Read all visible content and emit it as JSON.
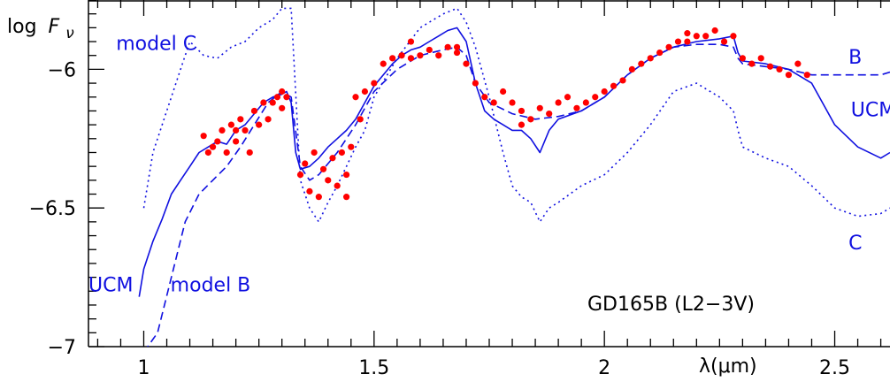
{
  "chart_data": {
    "type": "line",
    "title": "",
    "xlabel": "λ(μm)",
    "ylabel": "log F_ν",
    "ylabel_parts": {
      "prefix": "log",
      "symbol": "F",
      "subscript": "ν"
    },
    "xlim": [
      0.88,
      2.62
    ],
    "ylim": [
      -7.0,
      -5.75
    ],
    "x_ticks": [
      1,
      1.5,
      2,
      2.5
    ],
    "x_tick_labels": [
      "1",
      "1.5",
      "2",
      "2.5"
    ],
    "y_ticks": [
      -6,
      -6.5,
      -7
    ],
    "y_tick_labels": [
      "−6",
      "−6.5",
      "−7"
    ],
    "grid": false,
    "legend": "none",
    "object_label": "GD165B (L2−3V)",
    "colors": {
      "observed": "#ff0000",
      "model": "#1010e0",
      "axes": "#000000"
    },
    "series": [
      {
        "name": "UCM",
        "style": "solid",
        "x": [
          0.99,
          1.0,
          1.02,
          1.04,
          1.06,
          1.08,
          1.1,
          1.12,
          1.14,
          1.16,
          1.18,
          1.2,
          1.22,
          1.24,
          1.26,
          1.28,
          1.3,
          1.31,
          1.32,
          1.33,
          1.34,
          1.36,
          1.38,
          1.4,
          1.42,
          1.44,
          1.46,
          1.48,
          1.5,
          1.52,
          1.54,
          1.56,
          1.58,
          1.6,
          1.62,
          1.64,
          1.66,
          1.68,
          1.7,
          1.72,
          1.74,
          1.76,
          1.78,
          1.8,
          1.82,
          1.84,
          1.86,
          1.88,
          1.9,
          1.95,
          2.0,
          2.05,
          2.1,
          2.15,
          2.2,
          2.25,
          2.28,
          2.29,
          2.3,
          2.35,
          2.4,
          2.45,
          2.5,
          2.55,
          2.6,
          2.62
        ],
        "y": [
          -6.82,
          -6.72,
          -6.62,
          -6.54,
          -6.45,
          -6.4,
          -6.35,
          -6.3,
          -6.28,
          -6.26,
          -6.27,
          -6.22,
          -6.2,
          -6.16,
          -6.12,
          -6.1,
          -6.09,
          -6.08,
          -6.12,
          -6.3,
          -6.36,
          -6.35,
          -6.32,
          -6.28,
          -6.25,
          -6.22,
          -6.18,
          -6.12,
          -6.06,
          -6.02,
          -5.98,
          -5.95,
          -5.93,
          -5.92,
          -5.9,
          -5.88,
          -5.86,
          -5.85,
          -5.9,
          -6.05,
          -6.15,
          -6.18,
          -6.2,
          -6.22,
          -6.22,
          -6.25,
          -6.3,
          -6.22,
          -6.18,
          -6.15,
          -6.1,
          -6.02,
          -5.96,
          -5.92,
          -5.9,
          -5.89,
          -5.88,
          -5.94,
          -5.97,
          -5.98,
          -6.0,
          -6.05,
          -6.2,
          -6.28,
          -6.32,
          -6.3
        ]
      },
      {
        "name": "model B",
        "style": "dashed",
        "x": [
          1.0,
          1.03,
          1.06,
          1.09,
          1.12,
          1.15,
          1.18,
          1.21,
          1.24,
          1.27,
          1.3,
          1.32,
          1.34,
          1.36,
          1.38,
          1.4,
          1.42,
          1.44,
          1.46,
          1.5,
          1.55,
          1.6,
          1.65,
          1.68,
          1.7,
          1.72,
          1.75,
          1.8,
          1.85,
          1.9,
          1.95,
          2.0,
          2.05,
          2.1,
          2.15,
          2.2,
          2.25,
          2.28,
          2.29,
          2.3,
          2.35,
          2.4,
          2.45,
          2.5,
          2.55,
          2.6,
          2.62
        ],
        "y": [
          -7.02,
          -6.95,
          -6.75,
          -6.55,
          -6.45,
          -6.4,
          -6.35,
          -6.28,
          -6.2,
          -6.12,
          -6.08,
          -6.1,
          -6.35,
          -6.4,
          -6.38,
          -6.34,
          -6.3,
          -6.25,
          -6.2,
          -6.08,
          -6.0,
          -5.95,
          -5.93,
          -5.92,
          -5.95,
          -6.05,
          -6.12,
          -6.16,
          -6.18,
          -6.17,
          -6.15,
          -6.1,
          -6.02,
          -5.96,
          -5.92,
          -5.91,
          -5.91,
          -5.92,
          -5.96,
          -5.98,
          -5.99,
          -6.0,
          -6.02,
          -6.02,
          -6.02,
          -6.02,
          -6.01
        ]
      },
      {
        "name": "model C",
        "style": "dotted",
        "x": [
          1.0,
          1.02,
          1.05,
          1.08,
          1.1,
          1.13,
          1.16,
          1.19,
          1.22,
          1.25,
          1.28,
          1.3,
          1.32,
          1.34,
          1.36,
          1.38,
          1.4,
          1.42,
          1.44,
          1.46,
          1.48,
          1.5,
          1.55,
          1.6,
          1.65,
          1.68,
          1.7,
          1.72,
          1.75,
          1.78,
          1.8,
          1.82,
          1.84,
          1.86,
          1.88,
          1.9,
          1.95,
          2.0,
          2.05,
          2.1,
          2.15,
          2.2,
          2.25,
          2.28,
          2.29,
          2.3,
          2.35,
          2.4,
          2.45,
          2.5,
          2.55,
          2.6,
          2.62
        ],
        "y": [
          -6.5,
          -6.3,
          -6.15,
          -6.0,
          -5.9,
          -5.95,
          -5.96,
          -5.92,
          -5.9,
          -5.85,
          -5.82,
          -5.78,
          -5.78,
          -6.4,
          -6.5,
          -6.55,
          -6.48,
          -6.42,
          -6.35,
          -6.28,
          -6.22,
          -6.1,
          -5.96,
          -5.85,
          -5.8,
          -5.78,
          -5.83,
          -5.92,
          -6.1,
          -6.3,
          -6.42,
          -6.46,
          -6.48,
          -6.55,
          -6.5,
          -6.48,
          -6.42,
          -6.38,
          -6.3,
          -6.2,
          -6.08,
          -6.05,
          -6.1,
          -6.15,
          -6.22,
          -6.28,
          -6.32,
          -6.35,
          -6.42,
          -6.5,
          -6.53,
          -6.52,
          -6.5
        ]
      },
      {
        "name": "observed",
        "style": "markers",
        "x": [
          1.13,
          1.14,
          1.15,
          1.16,
          1.17,
          1.18,
          1.19,
          1.2,
          1.21,
          1.22,
          1.23,
          1.24,
          1.25,
          1.26,
          1.27,
          1.28,
          1.29,
          1.3,
          1.31,
          1.34,
          1.35,
          1.36,
          1.37,
          1.38,
          1.39,
          1.4,
          1.41,
          1.42,
          1.43,
          1.44,
          1.45,
          1.46,
          1.47,
          1.48,
          1.5,
          1.52,
          1.54,
          1.56,
          1.58,
          1.6,
          1.62,
          1.64,
          1.66,
          1.68,
          1.7,
          1.72,
          1.74,
          1.76,
          1.78,
          1.8,
          1.82,
          1.84,
          1.86,
          1.88,
          1.9,
          1.92,
          1.94,
          1.96,
          1.98,
          2.0,
          2.02,
          2.04,
          2.06,
          2.08,
          2.1,
          2.12,
          2.14,
          2.16,
          2.18,
          2.2,
          2.22,
          2.24,
          2.26,
          2.28,
          2.3,
          2.32,
          2.34,
          2.36,
          2.38,
          2.4,
          2.42,
          2.44,
          1.2,
          1.3,
          1.44,
          1.58,
          1.68,
          1.82,
          2.18
        ],
        "y": [
          -6.24,
          -6.3,
          -6.28,
          -6.26,
          -6.22,
          -6.3,
          -6.2,
          -6.26,
          -6.18,
          -6.22,
          -6.3,
          -6.15,
          -6.2,
          -6.12,
          -6.18,
          -6.12,
          -6.1,
          -6.08,
          -6.1,
          -6.38,
          -6.34,
          -6.44,
          -6.3,
          -6.46,
          -6.36,
          -6.4,
          -6.32,
          -6.42,
          -6.3,
          -6.38,
          -6.28,
          -6.1,
          -6.18,
          -6.08,
          -6.05,
          -5.98,
          -5.96,
          -5.95,
          -5.96,
          -5.95,
          -5.93,
          -5.95,
          -5.92,
          -5.94,
          -5.98,
          -6.05,
          -6.1,
          -6.12,
          -6.08,
          -6.12,
          -6.15,
          -6.18,
          -6.14,
          -6.16,
          -6.12,
          -6.1,
          -6.14,
          -6.12,
          -6.1,
          -6.08,
          -6.06,
          -6.04,
          -6.0,
          -5.98,
          -5.96,
          -5.94,
          -5.92,
          -5.9,
          -5.9,
          -5.88,
          -5.88,
          -5.86,
          -5.9,
          -5.88,
          -5.96,
          -5.98,
          -5.96,
          -5.99,
          -6.0,
          -6.02,
          -5.98,
          -6.02,
          -6.22,
          -6.14,
          -6.46,
          -5.9,
          -5.92,
          -6.2,
          -5.87
        ]
      }
    ],
    "annotations": [
      {
        "text": "model C",
        "x": 0.94,
        "y": -5.93,
        "color": "#1010e0"
      },
      {
        "text": "B",
        "x": 2.53,
        "y": -5.98,
        "color": "#1010e0"
      },
      {
        "text": "UCM",
        "x": 2.535,
        "y": -6.17,
        "color": "#1010e0"
      },
      {
        "text": "C",
        "x": 2.53,
        "y": -6.65,
        "color": "#1010e0"
      },
      {
        "text": "UCM",
        "x": 0.88,
        "y": -6.8,
        "color": "#1010e0"
      },
      {
        "text": "model B",
        "x": 1.058,
        "y": -6.8,
        "color": "#1010e0"
      }
    ]
  }
}
